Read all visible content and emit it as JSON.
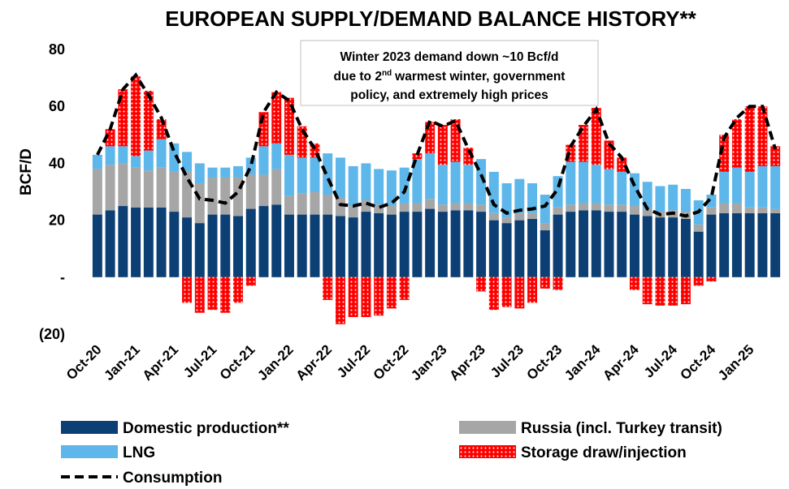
{
  "chart_data": {
    "type": "bar",
    "stacked": true,
    "title": "EUROPEAN SUPPLY/DEMAND BALANCE HISTORY**",
    "y_label": "BCF/D",
    "annotation": {
      "line1": "Winter 2023 demand down ~10 Bcf/d",
      "line2_start": "due to 2",
      "line2_sup": "nd",
      "line2_end": "warmest winter, government",
      "line3": "policy, and extremely high prices"
    },
    "categories": [
      "Oct-20",
      null,
      null,
      "Jan-21",
      null,
      null,
      "Apr-21",
      null,
      null,
      "Jul-21",
      null,
      null,
      "Oct-21",
      null,
      null,
      "Jan-22",
      null,
      null,
      "Apr-22",
      null,
      null,
      "Jul-22",
      null,
      null,
      "Oct-22",
      null,
      null,
      "Jan-23",
      null,
      null,
      "Apr-23",
      null,
      null,
      "Jul-23",
      null,
      null,
      "Oct-23",
      null,
      null,
      "Jan-24",
      null,
      null,
      "Apr-24",
      null,
      null,
      "Jul-24",
      null,
      null,
      "Oct-24",
      null,
      null,
      "Jan-25",
      null,
      null
    ],
    "ylim": [
      -20,
      80
    ],
    "yticks": [
      {
        "value": -20,
        "label": "(20)"
      },
      {
        "value": 0,
        "label": "-"
      },
      20,
      40,
      60,
      80
    ],
    "grid": false,
    "series": [
      {
        "name": "Domestic production**",
        "color": "#0c3f73",
        "values": [
          22,
          23.5,
          25,
          24.5,
          24.5,
          24.5,
          23,
          21,
          19,
          22,
          22,
          21.5,
          24,
          25,
          25.5,
          22,
          22,
          22,
          22,
          21.5,
          21,
          23,
          22.5,
          22,
          23,
          23,
          24,
          23,
          23.5,
          23.5,
          23,
          20,
          19,
          20,
          20.5,
          16.5,
          22,
          23,
          23.5,
          23.5,
          23,
          23,
          22,
          21.5,
          21,
          21,
          20.5,
          16,
          22,
          22.5,
          22.5,
          22.5,
          22.5,
          22.5
        ]
      },
      {
        "name": "Russia (incl. Turkey transit)",
        "color": "#a6a6a6",
        "values": [
          16,
          16,
          15,
          14,
          13,
          14,
          14,
          16,
          14,
          13,
          13,
          13.5,
          12,
          11,
          12.5,
          6.5,
          7.5,
          8,
          7,
          6.5,
          4,
          4,
          3,
          3,
          3,
          3,
          3.5,
          2.5,
          2.5,
          2.5,
          2.5,
          2.5,
          2,
          2.5,
          2,
          2.5,
          2.5,
          2.5,
          2.5,
          2.5,
          2.5,
          2.5,
          3,
          2.5,
          2,
          2.5,
          2.5,
          2.5,
          2.5,
          3.5,
          3.5,
          2,
          2,
          1.5
        ]
      },
      {
        "name": "LNG",
        "color": "#5db7ea",
        "values": [
          5,
          6.5,
          6,
          4,
          7,
          10,
          10,
          7,
          7,
          3.5,
          3.5,
          4,
          6,
          10,
          9,
          14.5,
          12.5,
          12,
          14.5,
          14,
          14,
          13,
          12.5,
          12.5,
          12.5,
          15.5,
          16,
          14,
          14.5,
          13.5,
          16,
          14.5,
          12,
          12,
          10.5,
          10,
          11,
          15,
          14.5,
          13.5,
          12.5,
          11.5,
          11.5,
          9.5,
          9,
          9,
          8,
          8.5,
          4.5,
          11,
          12.5,
          12.5,
          14.5,
          15
        ]
      },
      {
        "name": "Storage draw/injection",
        "color": "#ff0000",
        "pattern": "dots",
        "values": [
          0,
          6,
          20,
          28,
          21,
          7,
          0,
          -9,
          -12.5,
          -11.5,
          -12.5,
          -9,
          -3,
          12,
          18,
          20,
          11,
          5,
          -8,
          -16.5,
          -14,
          -14,
          -13.5,
          -11,
          -8,
          2,
          11,
          14,
          15,
          6,
          -5,
          -11.5,
          -10.5,
          -11,
          -9,
          -4,
          -4.5,
          6,
          13,
          20,
          10,
          5,
          -4.5,
          -9.5,
          -10,
          -10,
          -9.5,
          -3,
          -1.5,
          13,
          17,
          23,
          21,
          7
        ]
      },
      {
        "name": "Consumption",
        "color": "#000000",
        "kind": "line",
        "dashed": true,
        "values": [
          43,
          52,
          66,
          71,
          64,
          56,
          44,
          35,
          27.5,
          27,
          26,
          30,
          39,
          58,
          65,
          62,
          52,
          45,
          35,
          25.5,
          25,
          26,
          24.5,
          26,
          30,
          43,
          55,
          53,
          55,
          45,
          36,
          25.5,
          22.5,
          23.5,
          24,
          25,
          31,
          46,
          53,
          59,
          47,
          42,
          32,
          24,
          22,
          22.5,
          21.5,
          23,
          28,
          49,
          56,
          60,
          60,
          45
        ]
      }
    ]
  }
}
